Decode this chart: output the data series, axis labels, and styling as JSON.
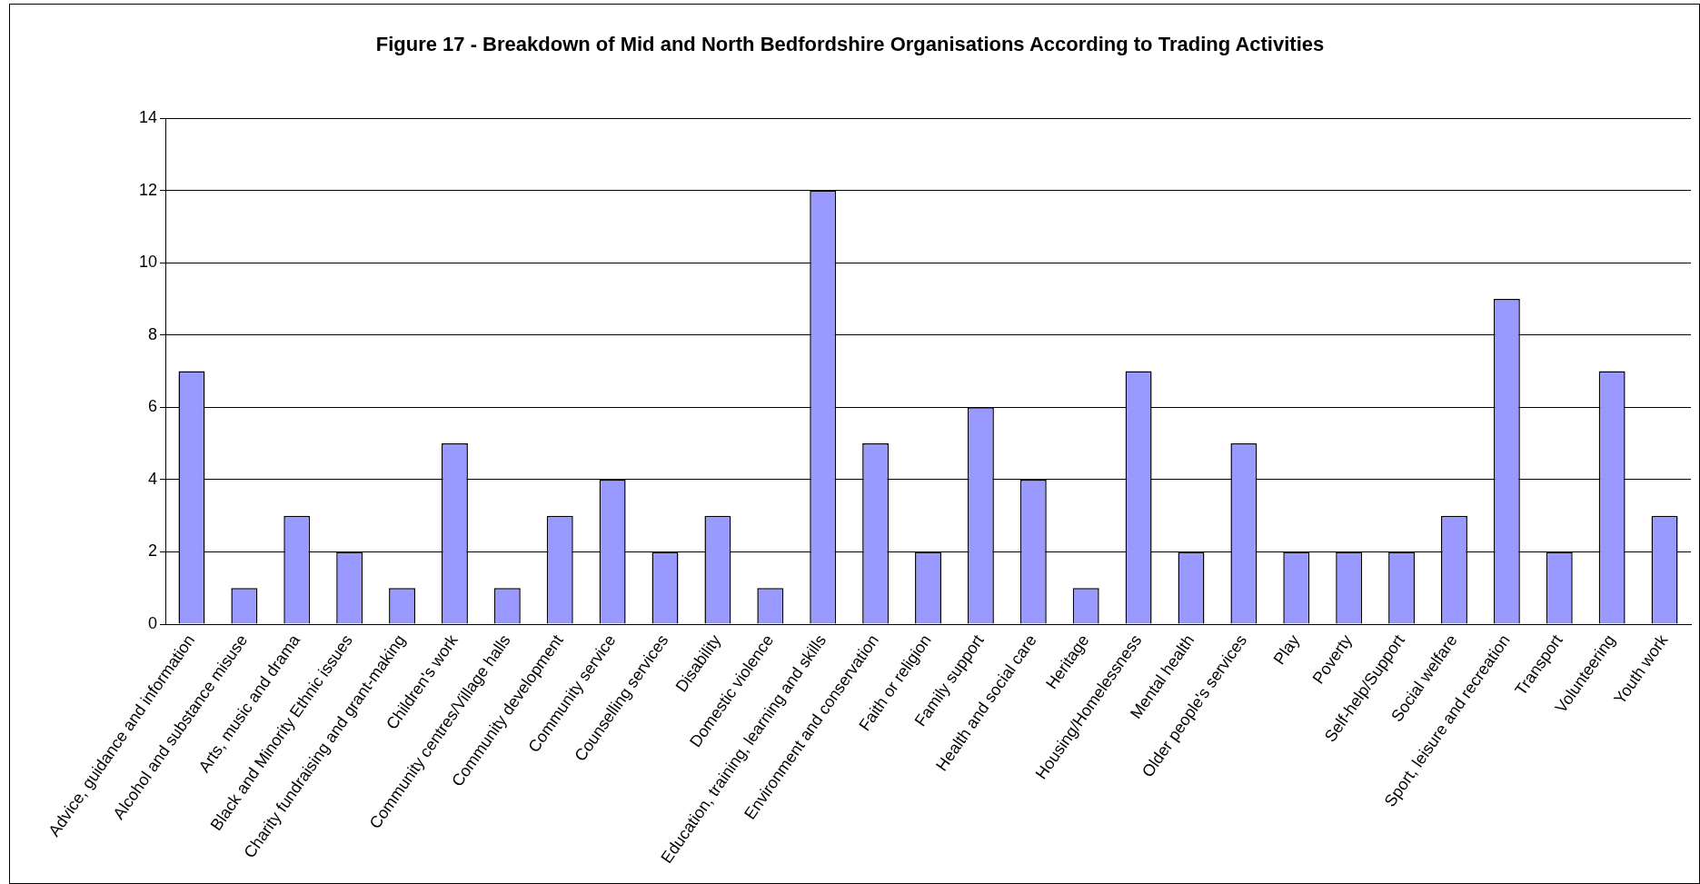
{
  "chart_data": {
    "type": "bar",
    "title": "Figure 17 - Breakdown of Mid and North Bedfordshire Organisations According to Trading Activities",
    "categories": [
      "Advice, guidance and information",
      "Alcohol and substance misuse",
      "Arts, music and drama",
      "Black and Minority Ethnic issues",
      "Charity fundraising and grant-making",
      "Children's work",
      "Community centres/Village halls",
      "Community development",
      "Community service",
      "Counselling services",
      "Disability",
      "Domestic violence",
      "Education, training, learning and skills",
      "Environment and conservation",
      "Faith or religion",
      "Family support",
      "Health and social care",
      "Heritage",
      "Housing/Homelessness",
      "Mental health",
      "Older people's services",
      "Play",
      "Poverty",
      "Self-help/Support",
      "Social welfare",
      "Sport, leisure and recreation",
      "Transport",
      "Volunteering",
      "Youth work"
    ],
    "values": [
      7,
      1,
      3,
      2,
      1,
      5,
      1,
      3,
      4,
      2,
      3,
      1,
      12,
      5,
      2,
      6,
      4,
      1,
      7,
      2,
      5,
      2,
      2,
      2,
      3,
      9,
      2,
      7,
      3
    ],
    "color": "#9999ff",
    "ylim": [
      0,
      14
    ],
    "yticks": [
      0,
      2,
      4,
      6,
      8,
      10,
      12,
      14
    ],
    "grid": "y"
  }
}
